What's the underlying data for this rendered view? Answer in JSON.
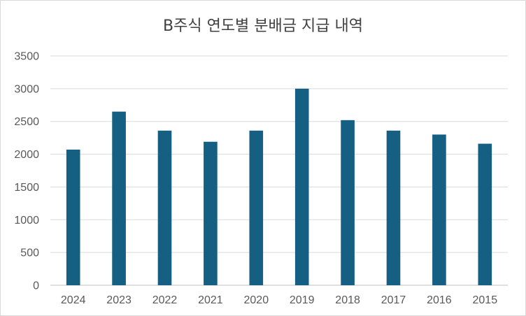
{
  "chart_data": {
    "type": "bar",
    "title": "B주식 연도별 분배금 지급 내역",
    "xlabel": "",
    "ylabel": "",
    "categories": [
      "2024",
      "2023",
      "2022",
      "2021",
      "2020",
      "2019",
      "2018",
      "2017",
      "2016",
      "2015"
    ],
    "values": [
      2070,
      2650,
      2360,
      2190,
      2360,
      3000,
      2520,
      2360,
      2300,
      2160
    ],
    "ylim": [
      0,
      3500
    ],
    "yticks": [
      0,
      500,
      1000,
      1500,
      2000,
      2500,
      3000,
      3500
    ],
    "grid": true,
    "legend": "none",
    "bar_color": "#145f82",
    "grid_color": "#d9d9d9",
    "axis_color": "#bfbfbf"
  }
}
